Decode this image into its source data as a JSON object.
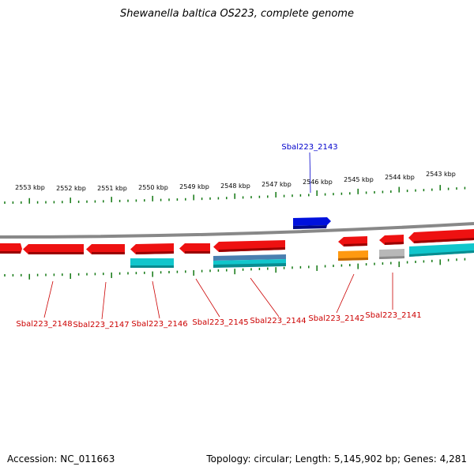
{
  "title": "Shewanella baltica OS223, complete genome",
  "footer": {
    "accession": "Accession: NC_011663",
    "summary": "Topology: circular; Length: 5,145,902 bp; Genes: 4,281"
  },
  "colors": {
    "gene_red": "#ee1111",
    "gene_red_dark": "#9a0000",
    "gene_cyan": "#11c6cc",
    "gene_steel": "#4a7fb0",
    "gene_orange": "#ff9911",
    "gene_gray": "#b8b8b8",
    "gene_blue": "#0011dd",
    "tick_green": "#117711",
    "backbone": "#888888",
    "label_red": "#cc0000",
    "label_blue": "#0000cc"
  },
  "scale": {
    "ticks": [
      {
        "label": "2553 kbp"
      },
      {
        "label": "2552 kbp"
      },
      {
        "label": "2551 kbp"
      },
      {
        "label": "2550 kbp"
      },
      {
        "label": "2549 kbp"
      },
      {
        "label": "2548 kbp"
      },
      {
        "label": "2547 kbp"
      },
      {
        "label": "2546 kbp"
      },
      {
        "label": "2545 kbp"
      },
      {
        "label": "2544 kbp"
      },
      {
        "label": "2543 kbp"
      }
    ]
  },
  "genes": [
    {
      "label": "Sbal223_2148",
      "color": "red"
    },
    {
      "label": "Sbal223_2147",
      "color": "red"
    },
    {
      "label": "Sbal223_2146",
      "color": "red"
    },
    {
      "label": "Sbal223_2145",
      "color": "red"
    },
    {
      "label": "Sbal223_2144",
      "color": "red"
    },
    {
      "label": "Sbal223_2143",
      "color": "blue"
    },
    {
      "label": "Sbal223_2142",
      "color": "red"
    },
    {
      "label": "Sbal223_2141",
      "color": "red"
    }
  ]
}
